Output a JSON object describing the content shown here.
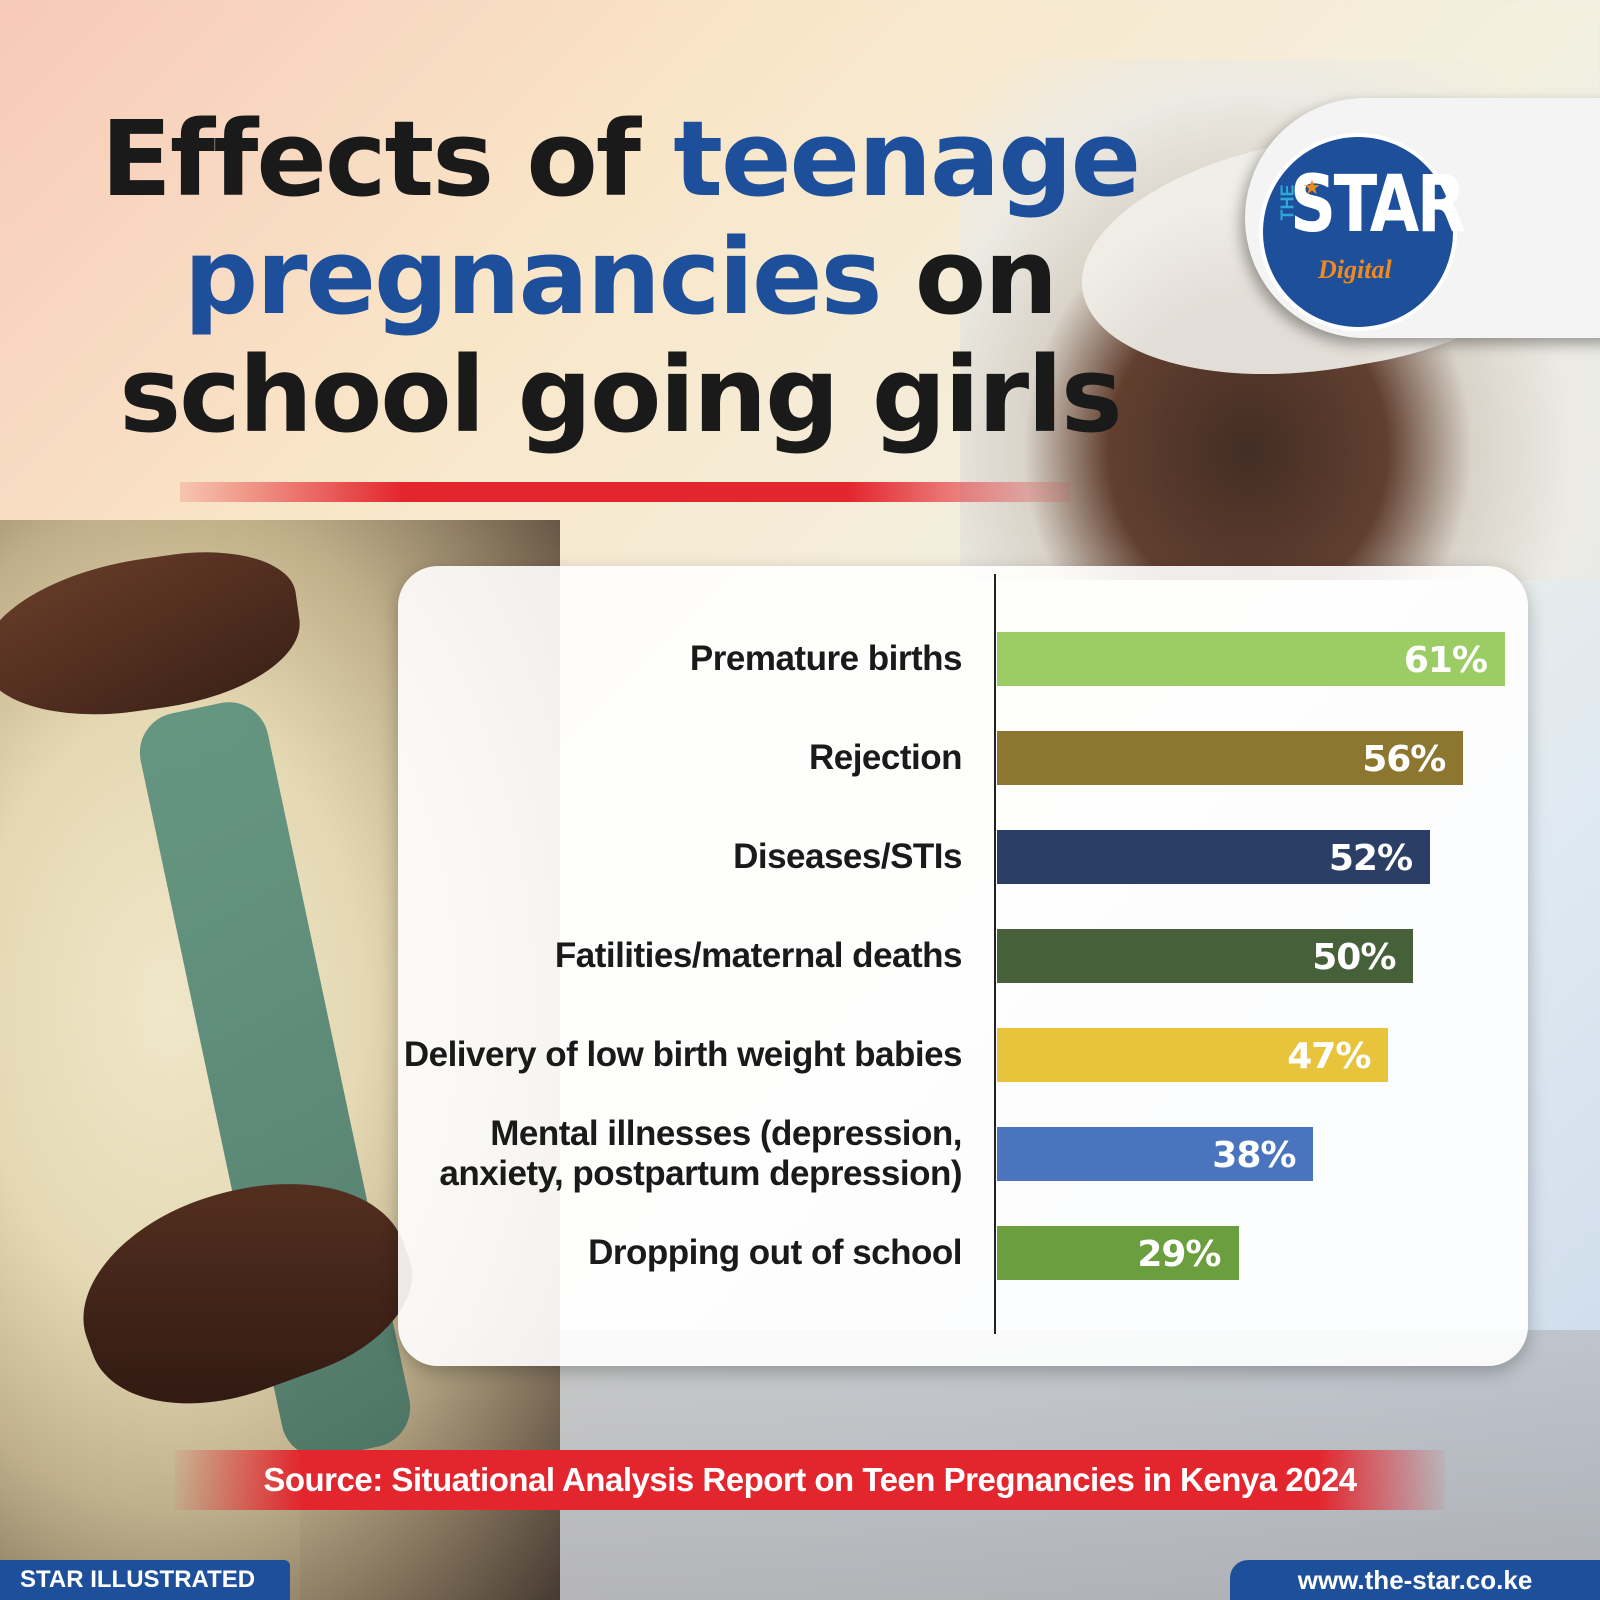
{
  "title": {
    "part1": "Effects of ",
    "highlight1": "teenage",
    "highlight2": "pregnancies",
    "part2": " on school going girls"
  },
  "logo": {
    "the": "THE",
    "star": "STAR",
    "digital": "Digital"
  },
  "chart_data": {
    "type": "bar",
    "orientation": "horizontal",
    "categories": [
      "Premature births",
      "Rejection",
      "Diseases/STIs",
      "Fatilities/maternal deaths",
      "Delivery of low birth weight babies",
      "Mental illnesses (depression, anxiety, postpartum depression)",
      "Dropping out of school"
    ],
    "values": [
      61,
      56,
      52,
      50,
      47,
      38,
      29
    ],
    "value_labels": [
      "61%",
      "56%",
      "52%",
      "50%",
      "47%",
      "38%",
      "29%"
    ],
    "unit": "%",
    "xlim": [
      0,
      61
    ],
    "grid": false,
    "colors": [
      "#9ccd64",
      "#8c7630",
      "#2b3f66",
      "#46613a",
      "#e8c43c",
      "#4a74bd",
      "#6a9e3f"
    ]
  },
  "source": "Source: Situational Analysis Report on Teen Pregnancies in Kenya 2024",
  "footer": {
    "left": "STAR ILLUSTRATED",
    "right": "www.the-star.co.ke"
  },
  "colors": {
    "brand_blue": "#1e4f9a",
    "accent_red": "#e3262e",
    "logo_orange": "#f08a1e"
  }
}
